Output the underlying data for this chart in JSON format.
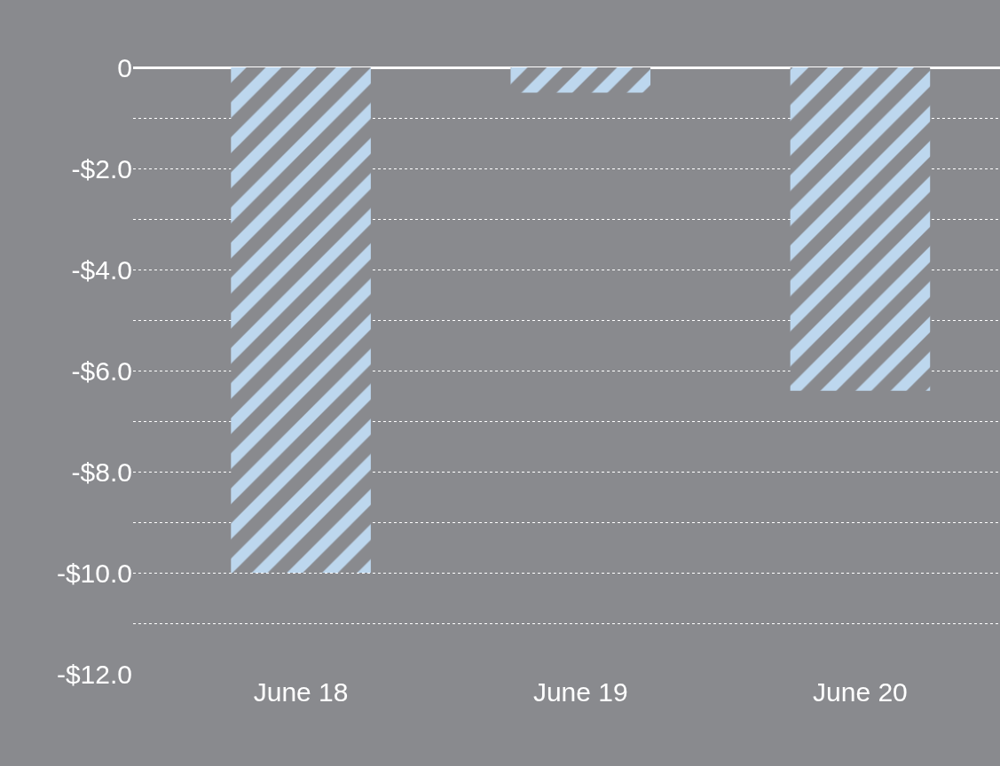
{
  "chart_data": {
    "type": "bar",
    "categories": [
      "June 18",
      "June 19",
      "June 20"
    ],
    "series": [
      {
        "color": "#bdd7ee",
        "values": [
          -10.0,
          -0.5,
          -6.4
        ]
      }
    ],
    "ylim": [
      -12,
      0
    ],
    "yticks": [
      {
        "value": 0,
        "label": "0"
      },
      {
        "value": -1,
        "label": null
      },
      {
        "value": -2,
        "label": "-$2.0"
      },
      {
        "value": -3,
        "label": null
      },
      {
        "value": -4,
        "label": "-$4.0"
      },
      {
        "value": -5,
        "label": null
      },
      {
        "value": -6,
        "label": "-$6.0"
      },
      {
        "value": -7,
        "label": null
      },
      {
        "value": -8,
        "label": "-$8.0"
      },
      {
        "value": -9,
        "label": null
      },
      {
        "value": -10,
        "label": "-$10.0"
      },
      {
        "value": -11,
        "label": null
      },
      {
        "value": -12,
        "label": "-$12.0"
      }
    ],
    "grid": "y",
    "legend": false
  }
}
